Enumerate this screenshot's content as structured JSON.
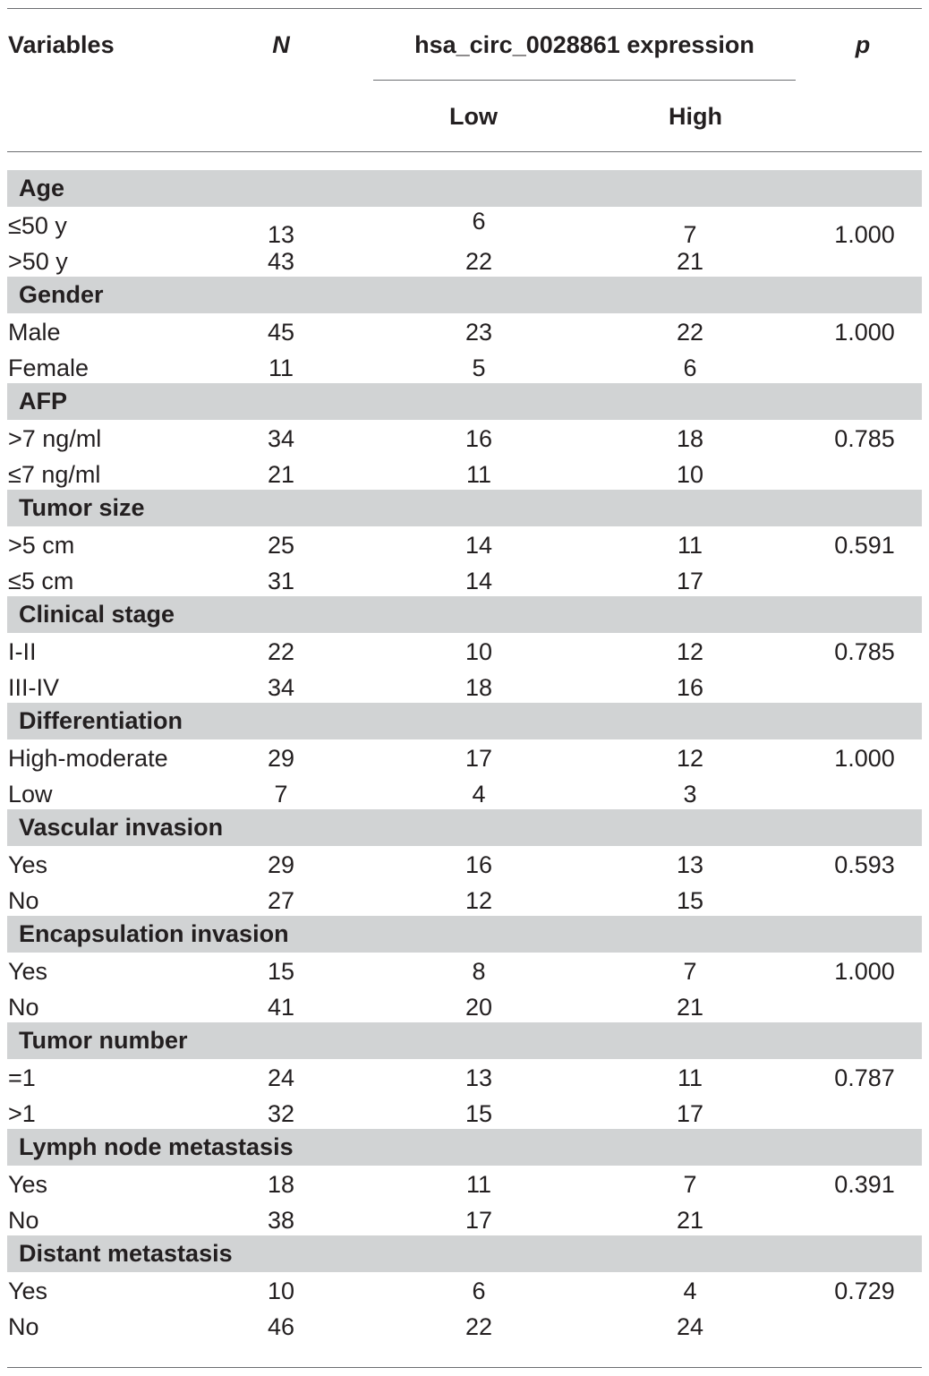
{
  "header": {
    "variables": "Variables",
    "n": "N",
    "expression": "hsa_circ_0028861 expression",
    "p": "p",
    "low": "Low",
    "high": "High"
  },
  "groups": [
    {
      "title": "Age",
      "rows": [
        {
          "label": "≤50 y",
          "n": "13",
          "low": "6",
          "high": "7",
          "p": "1.000"
        },
        {
          "label": ">50 y",
          "n": "43",
          "low": "22",
          "high": "21",
          "p": ""
        }
      ]
    },
    {
      "title": "Gender",
      "rows": [
        {
          "label": "Male",
          "n": "45",
          "low": "23",
          "high": "22",
          "p": "1.000"
        },
        {
          "label": "Female",
          "n": "11",
          "low": "5",
          "high": "6",
          "p": ""
        }
      ]
    },
    {
      "title": "AFP",
      "rows": [
        {
          "label": ">7 ng/ml",
          "n": "34",
          "low": "16",
          "high": "18",
          "p": "0.785"
        },
        {
          "label": "≤7 ng/ml",
          "n": "21",
          "low": "11",
          "high": "10",
          "p": ""
        }
      ]
    },
    {
      "title": "Tumor size",
      "rows": [
        {
          "label": ">5 cm",
          "n": "25",
          "low": "14",
          "high": "11",
          "p": "0.591"
        },
        {
          "label": "≤5 cm",
          "n": "31",
          "low": "14",
          "high": "17",
          "p": ""
        }
      ]
    },
    {
      "title": "Clinical stage",
      "rows": [
        {
          "label": "I-II",
          "n": "22",
          "low": "10",
          "high": "12",
          "p": "0.785"
        },
        {
          "label": "III-IV",
          "n": "34",
          "low": "18",
          "high": "16",
          "p": ""
        }
      ]
    },
    {
      "title": "Differentiation",
      "rows": [
        {
          "label": "High-moderate",
          "n": "29",
          "low": "17",
          "high": "12",
          "p": "1.000"
        },
        {
          "label": "Low",
          "n": "7",
          "low": "4",
          "high": "3",
          "p": ""
        }
      ]
    },
    {
      "title": "Vascular invasion",
      "rows": [
        {
          "label": "Yes",
          "n": "29",
          "low": "16",
          "high": "13",
          "p": "0.593"
        },
        {
          "label": "No",
          "n": "27",
          "low": "12",
          "high": "15",
          "p": ""
        }
      ]
    },
    {
      "title": "Encapsulation invasion",
      "rows": [
        {
          "label": "Yes",
          "n": "15",
          "low": "8",
          "high": "7",
          "p": "1.000"
        },
        {
          "label": "No",
          "n": "41",
          "low": "20",
          "high": "21",
          "p": ""
        }
      ]
    },
    {
      "title": "Tumor number",
      "rows": [
        {
          "label": "=1",
          "n": "24",
          "low": "13",
          "high": "11",
          "p": "0.787"
        },
        {
          "label": ">1",
          "n": "32",
          "low": "15",
          "high": "17",
          "p": ""
        }
      ]
    },
    {
      "title": "Lymph node metastasis",
      "rows": [
        {
          "label": "Yes",
          "n": "18",
          "low": "11",
          "high": "7",
          "p": "0.391"
        },
        {
          "label": "No",
          "n": "38",
          "low": "17",
          "high": "21",
          "p": ""
        }
      ]
    },
    {
      "title": "Distant metastasis",
      "rows": [
        {
          "label": "Yes",
          "n": "10",
          "low": "6",
          "high": "4",
          "p": "0.729"
        },
        {
          "label": "No",
          "n": "46",
          "low": "22",
          "high": "24",
          "p": ""
        }
      ]
    }
  ]
}
